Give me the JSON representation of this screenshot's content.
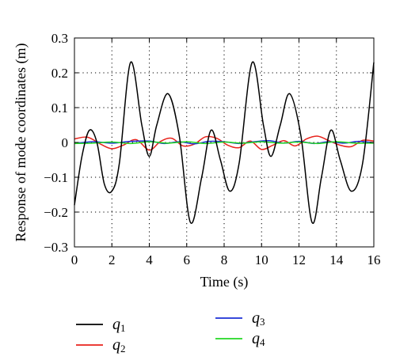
{
  "chart_data": {
    "type": "line",
    "xlabel": "Time (s)",
    "ylabel": "Response of mode coordinates (m)",
    "xlim": [
      0,
      16
    ],
    "ylim": [
      -0.3,
      0.3
    ],
    "x_ticks": [
      0,
      2,
      4,
      6,
      8,
      10,
      12,
      14,
      16
    ],
    "y_ticks": [
      -0.3,
      -0.2,
      -0.1,
      0,
      0.1,
      0.2,
      0.3
    ],
    "x_tick_labels": [
      "0",
      "2",
      "4",
      "6",
      "8",
      "10",
      "12",
      "14",
      "16"
    ],
    "y_tick_labels": [
      "−0.3",
      "−0.2",
      "−0.1",
      "0",
      "0.1",
      "0.2",
      "0.3"
    ],
    "grid": true,
    "legend_position": "below",
    "series": [
      {
        "name": "q1",
        "label_base": "q",
        "label_sub": "1",
        "color": "#000000",
        "x": [
          0,
          0.4,
          0.8,
          1.2,
          1.6,
          2.0,
          2.4,
          3.0,
          3.6,
          4.0,
          4.4,
          5.0,
          5.6,
          6.2,
          6.8,
          7.3,
          7.8,
          8.3,
          8.8,
          9.5,
          10.1,
          10.5,
          11.0,
          11.5,
          12.1,
          12.7,
          13.2,
          13.7,
          14.2,
          14.8,
          15.4,
          16.0
        ],
        "y": [
          -0.18,
          -0.04,
          0.035,
          0.0,
          -0.12,
          -0.14,
          -0.06,
          0.23,
          0.05,
          -0.04,
          0.05,
          0.14,
          0.02,
          -0.23,
          -0.1,
          0.035,
          -0.05,
          -0.14,
          -0.06,
          0.23,
          0.05,
          -0.04,
          0.05,
          0.14,
          0.02,
          -0.23,
          -0.1,
          0.035,
          -0.05,
          -0.14,
          -0.06,
          0.23
        ]
      },
      {
        "name": "q2",
        "label_base": "q",
        "label_sub": "2",
        "color": "#e8231c",
        "x": [
          0,
          0.7,
          1.4,
          2.0,
          2.6,
          3.3,
          4.0,
          4.6,
          5.2,
          5.8,
          6.4,
          7.0,
          7.6,
          8.2,
          8.8,
          9.4,
          10.0,
          10.6,
          11.2,
          11.8,
          12.4,
          13.0,
          13.6,
          14.2,
          14.8,
          15.4,
          16.0
        ],
        "y": [
          0.01,
          0.015,
          -0.005,
          -0.018,
          -0.008,
          0.008,
          -0.022,
          0.003,
          0.012,
          -0.01,
          -0.005,
          0.016,
          0.012,
          -0.008,
          -0.015,
          0.004,
          -0.02,
          -0.008,
          0.005,
          -0.01,
          0.01,
          0.018,
          0.005,
          -0.008,
          -0.012,
          0.006,
          0.004
        ]
      },
      {
        "name": "q3",
        "label_base": "q",
        "label_sub": "3",
        "color": "#1c2fd6",
        "x": [
          0,
          1.0,
          2.0,
          3.0,
          4.0,
          4.8,
          5.6,
          6.4,
          7.2,
          8.0,
          8.8,
          9.6,
          10.4,
          11.2,
          12.0,
          12.8,
          13.6,
          14.4,
          15.2,
          16.0
        ],
        "y": [
          -0.003,
          0.002,
          -0.002,
          0.003,
          0.004,
          -0.003,
          0.002,
          -0.004,
          0.003,
          0.002,
          -0.003,
          0.002,
          0.005,
          -0.002,
          0.003,
          -0.003,
          0.002,
          -0.002,
          0.003,
          -0.001
        ]
      },
      {
        "name": "q4",
        "label_base": "q",
        "label_sub": "4",
        "color": "#22d822",
        "x": [
          0,
          1.0,
          2.0,
          3.0,
          4.0,
          5.0,
          6.0,
          7.0,
          8.0,
          9.0,
          10.0,
          11.0,
          12.0,
          13.0,
          14.0,
          15.0,
          16.0
        ],
        "y": [
          -0.003,
          -0.002,
          0.001,
          -0.003,
          0.002,
          -0.002,
          0.002,
          -0.003,
          0.001,
          -0.002,
          0.002,
          -0.002,
          0.001,
          -0.003,
          0.002,
          -0.002,
          -0.002
        ]
      }
    ]
  }
}
